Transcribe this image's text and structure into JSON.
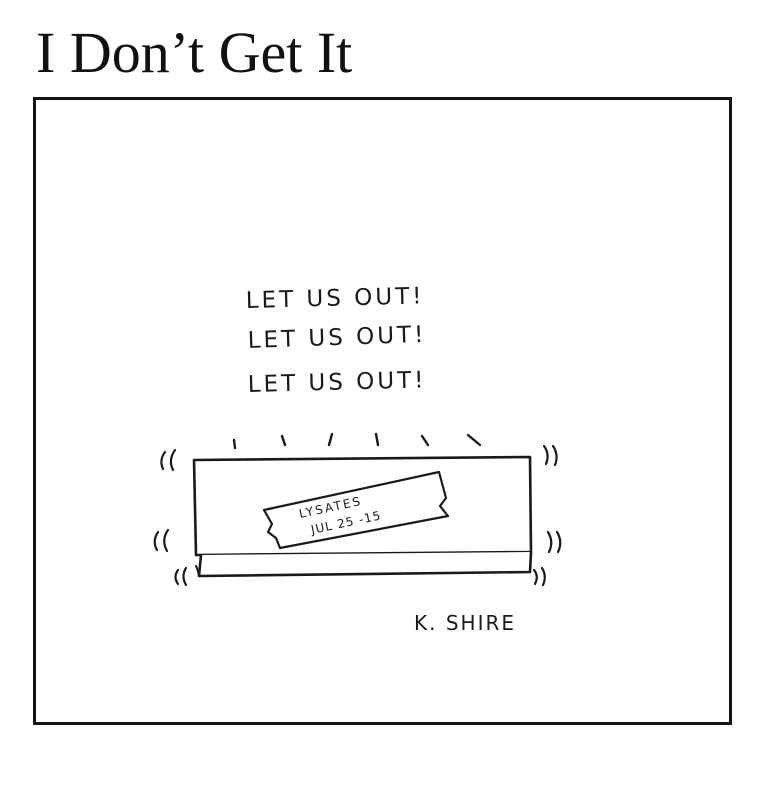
{
  "comic": {
    "title": "I Don’t Get It",
    "speech_lines": [
      "LET US OUT!",
      "LET US OUT!",
      "LET US OUT!"
    ],
    "label_line1": "LYSATES",
    "label_line2": "JUL 25 -15",
    "signature": "K. SHIRE",
    "ink_color": "#1a1a1a"
  }
}
